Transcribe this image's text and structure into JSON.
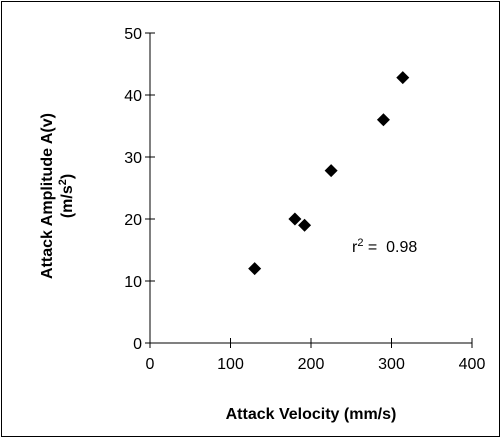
{
  "chart_data": {
    "type": "scatter",
    "xlabel": "Attack Velocity (mm/s)",
    "ylabel_line1": "Attack Amplitude A(v)",
    "ylabel_line2_prefix": "(m/s",
    "ylabel_line2_sup": "2",
    "ylabel_line2_suffix": ")",
    "xlim": [
      0,
      400
    ],
    "ylim": [
      0,
      50
    ],
    "x_ticks": [
      0,
      100,
      200,
      300,
      400
    ],
    "y_ticks": [
      0,
      10,
      20,
      30,
      40,
      50
    ],
    "grid": false,
    "marker": "diamond",
    "marker_color": "#000000",
    "points": [
      {
        "x": 130,
        "y": 12
      },
      {
        "x": 180,
        "y": 20
      },
      {
        "x": 192,
        "y": 19
      },
      {
        "x": 225,
        "y": 27.8
      },
      {
        "x": 290,
        "y": 36
      },
      {
        "x": 314,
        "y": 42.8
      }
    ],
    "annotation": {
      "prefix": "r",
      "sup": "2",
      "suffix": " =  0.98"
    }
  }
}
